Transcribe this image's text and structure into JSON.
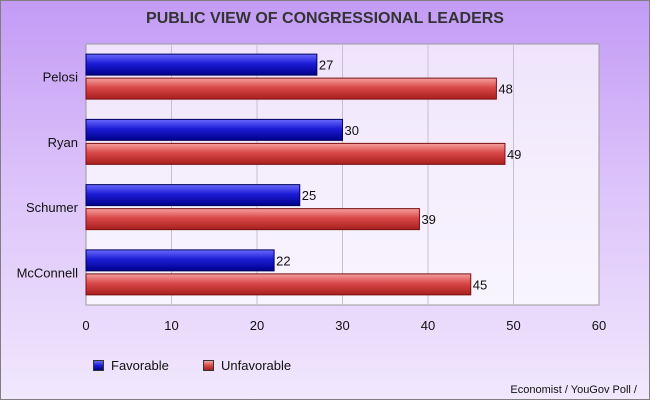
{
  "chart_data": {
    "type": "bar",
    "orientation": "horizontal",
    "title": "PUBLIC VIEW OF CONGRESSIONAL LEADERS",
    "categories": [
      "Pelosi",
      "Ryan",
      "Schumer",
      "McConnell"
    ],
    "series": [
      {
        "name": "Favorable",
        "values": [
          27,
          30,
          25,
          22
        ],
        "color": "#1c1cc8"
      },
      {
        "name": "Unfavorable",
        "values": [
          48,
          49,
          39,
          45
        ],
        "color": "#d94444"
      }
    ],
    "xlim": [
      0,
      60
    ],
    "xticks": [
      0,
      10,
      20,
      30,
      40,
      50,
      60
    ],
    "grid": true,
    "legend_position": "bottom-left",
    "source": "Economist / YouGov Poll /"
  }
}
